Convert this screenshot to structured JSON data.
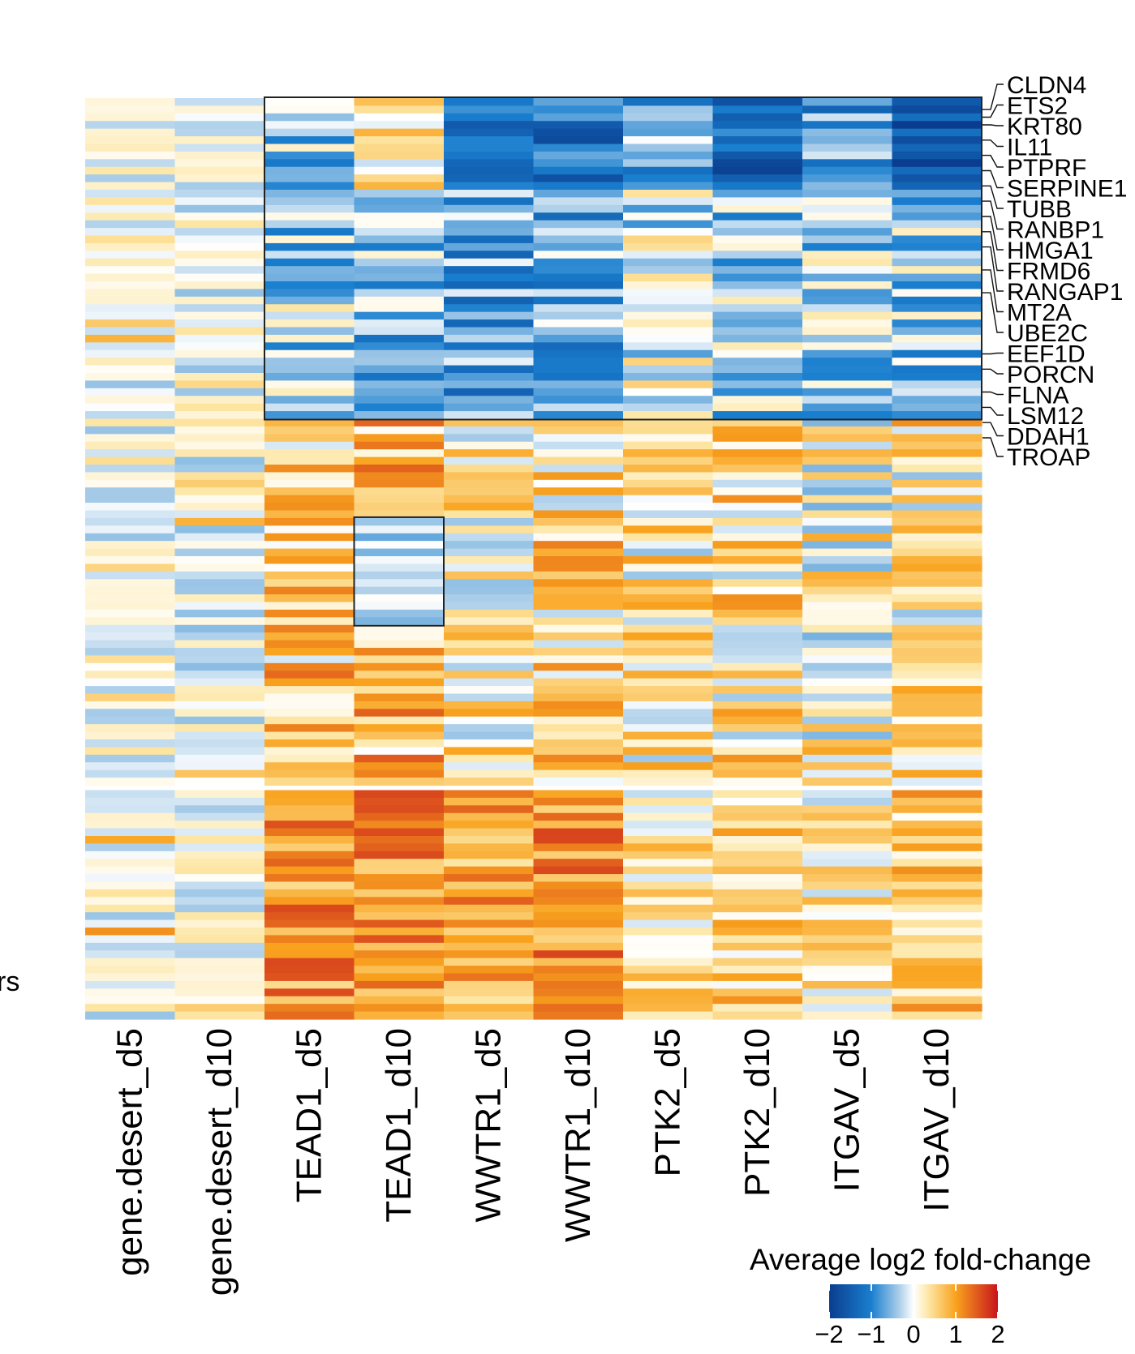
{
  "chart_data": {
    "type": "heatmap",
    "title": "",
    "columns": [
      "gene.desert_d5",
      "gene.desert_d10",
      "TEAD1_d5",
      "TEAD1_d10",
      "WWTR1_d5",
      "WWTR1_d10",
      "PTK2_d5",
      "PTK2_d10",
      "ITGAV_d5",
      "ITGAV_d10"
    ],
    "row_count": 120,
    "row_splits_after": [
      89
    ],
    "highlight_boxes": [
      {
        "rows": [
          0,
          41
        ],
        "columns": [
          "TEAD1_d5",
          "ITGAV_d10"
        ]
      },
      {
        "rows": [
          55,
          68
        ],
        "columns": [
          "TEAD1_d10",
          "TEAD1_d10"
        ]
      }
    ],
    "row_sections_description": [
      {
        "rows": [
          0,
          11
        ],
        "trend": "strongly negative in WWTR1, PTK2, ITGAV; mixed in TEAD1"
      },
      {
        "rows": [
          12,
          41
        ],
        "trend": "moderately negative across knockdowns"
      },
      {
        "rows": [
          42,
          89
        ],
        "trend": "moderately positive across knockdowns"
      },
      {
        "rows": [
          90,
          119
        ],
        "trend": "strongly positive in TEAD1 and WWTR1"
      }
    ],
    "gene_labels": [
      "CLDN4",
      "ETS2",
      "KRT80",
      "IL11",
      "PTPRF",
      "SERPINE1",
      "TUBB",
      "RANBP1",
      "HMGA1",
      "FRMD6",
      "RANGAP1",
      "MT2A",
      "UBE2C",
      "EEF1D",
      "PORCN",
      "FLNA",
      "LSM12",
      "DDAH1",
      "TROAP"
    ],
    "gene_label_rows": [
      1,
      2,
      3,
      5,
      7,
      9,
      11,
      13,
      15,
      17,
      19,
      22,
      25,
      33,
      35,
      38,
      40,
      42,
      44
    ],
    "color_scale": {
      "title": "Average log2 fold-change",
      "range": [
        -2,
        2
      ],
      "ticks": [
        "−2",
        "−1",
        "0",
        "1",
        "2"
      ],
      "stops": [
        {
          "value": -2,
          "color": "#0a3d8f"
        },
        {
          "value": -1,
          "color": "#1a7fcf"
        },
        {
          "value": -0.35,
          "color": "#a9cde9"
        },
        {
          "value": 0,
          "color": "#ffffff"
        },
        {
          "value": 0.35,
          "color": "#fde7a6"
        },
        {
          "value": 1,
          "color": "#f9a31e"
        },
        {
          "value": 2,
          "color": "#c8141c"
        }
      ]
    },
    "partial_left_label": "rs"
  }
}
